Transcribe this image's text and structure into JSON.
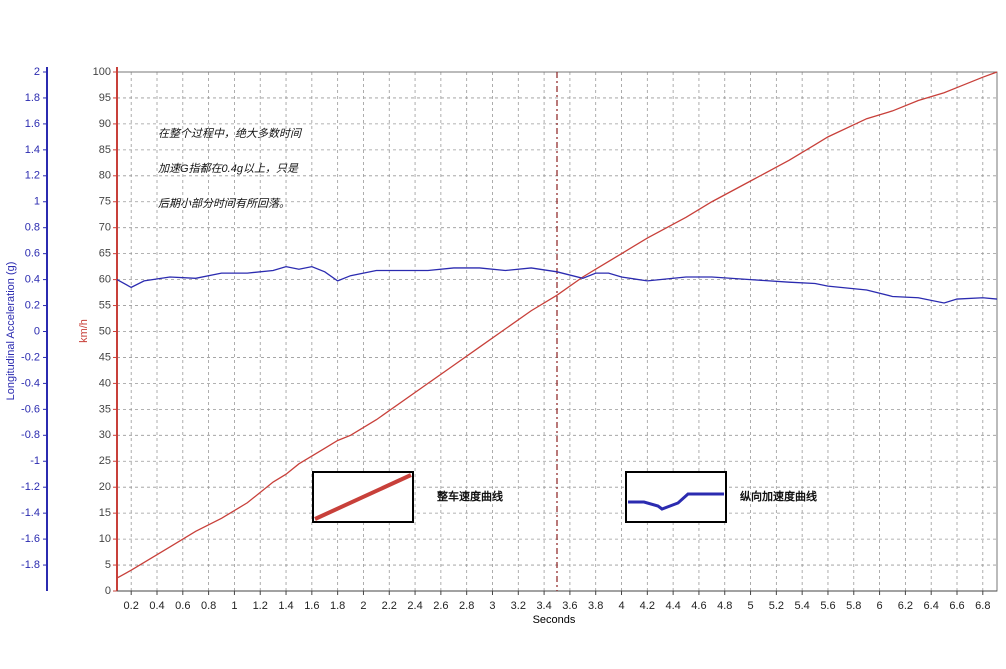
{
  "chart_data": {
    "type": "line",
    "annotation": [
      "在整个过程中，绝大多数时间",
      "加速G指都在0.4g以上，只是",
      "后期小部分时间有所回落。"
    ],
    "x_label": "Seconds",
    "y_label": "km/h",
    "y2_label": "Longitudinal Acceleration (g)",
    "x": [
      0.09,
      0.2,
      0.3,
      0.5,
      0.7,
      0.9,
      1.1,
      1.3,
      1.4,
      1.5,
      1.6,
      1.7,
      1.8,
      1.9,
      2.1,
      2.5,
      2.7,
      2.9,
      3.1,
      3.3,
      3.5,
      3.7,
      3.8,
      3.9,
      4.0,
      4.2,
      4.5,
      4.7,
      5.0,
      5.3,
      5.5,
      5.6,
      5.9,
      6.1,
      6.3,
      6.5,
      6.6,
      6.8,
      6.91
    ],
    "series": [
      {
        "name": "整车速度曲线",
        "color": "#c8403a",
        "axis": "y",
        "values": [
          2.5,
          4,
          5.5,
          8.5,
          11.5,
          14,
          17,
          21,
          22.5,
          24.5,
          26,
          27.5,
          29,
          30,
          33,
          40,
          43.5,
          47,
          50.5,
          54,
          57,
          60.5,
          62,
          63.5,
          65,
          68,
          72,
          75,
          79,
          83,
          86,
          87.5,
          91,
          92.5,
          94.5,
          96,
          97,
          99,
          100
        ]
      },
      {
        "name": "纵向加速度曲线",
        "color": "#2b2bb0",
        "axis": "y2",
        "values": [
          0.4,
          0.34,
          0.39,
          0.42,
          0.41,
          0.45,
          0.45,
          0.47,
          0.5,
          0.48,
          0.5,
          0.46,
          0.39,
          0.43,
          0.47,
          0.47,
          0.49,
          0.49,
          0.47,
          0.49,
          0.46,
          0.41,
          0.45,
          0.45,
          0.42,
          0.39,
          0.42,
          0.42,
          0.4,
          0.38,
          0.37,
          0.35,
          0.32,
          0.27,
          0.26,
          0.22,
          0.25,
          0.26,
          0.25
        ]
      }
    ],
    "vline": 3.5,
    "xlim": [
      0.09,
      6.91
    ],
    "xticks": [
      0.2,
      0.4,
      0.6,
      0.8,
      1,
      1.2,
      1.4,
      1.6,
      1.8,
      2,
      2.2,
      2.4,
      2.6,
      2.8,
      3,
      3.2,
      3.4,
      3.6,
      3.8,
      4,
      4.2,
      4.4,
      4.6,
      4.8,
      5,
      5.2,
      5.4,
      5.6,
      5.8,
      6,
      6.2,
      6.4,
      6.6,
      6.8
    ],
    "ylim": [
      0,
      100
    ],
    "yticks": [
      0,
      5,
      10,
      15,
      20,
      25,
      30,
      35,
      40,
      45,
      50,
      55,
      60,
      65,
      70,
      75,
      80,
      85,
      90,
      95,
      100
    ],
    "y2lim": [
      -2,
      2
    ],
    "y2ticks": [
      -1.8,
      -1.6,
      -1.4,
      -1.2,
      -1,
      -0.8,
      -0.6,
      -0.4,
      -0.2,
      0,
      0.2,
      0.4,
      0.6,
      0.8,
      1,
      1.2,
      1.4,
      1.6,
      1.8,
      2
    ],
    "grid": true
  }
}
